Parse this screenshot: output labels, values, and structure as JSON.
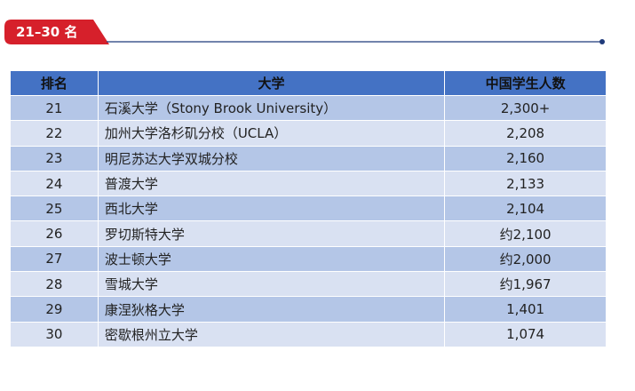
{
  "header": {
    "title": "21–30 名"
  },
  "table": {
    "columns": [
      "排名",
      "大学",
      "中国学生人数"
    ],
    "rows": [
      [
        "21",
        "石溪大学（Stony Brook University）",
        "2,300+"
      ],
      [
        "22",
        "加州大学洛杉矶分校（UCLA）",
        "2,208"
      ],
      [
        "23",
        "明尼苏达大学双城分校",
        "2,160"
      ],
      [
        "24",
        "普渡大学",
        "2,133"
      ],
      [
        "25",
        "西北大学",
        "2,104"
      ],
      [
        "26",
        "罗切斯特大学",
        "约2,100"
      ],
      [
        "27",
        "波士顿大学",
        "约2,000"
      ],
      [
        "28",
        "雪城大学",
        "约1,967"
      ],
      [
        "29",
        "康涅狄格大学",
        "1,401"
      ],
      [
        "30",
        "密歇根州立大学",
        "1,074"
      ]
    ]
  }
}
